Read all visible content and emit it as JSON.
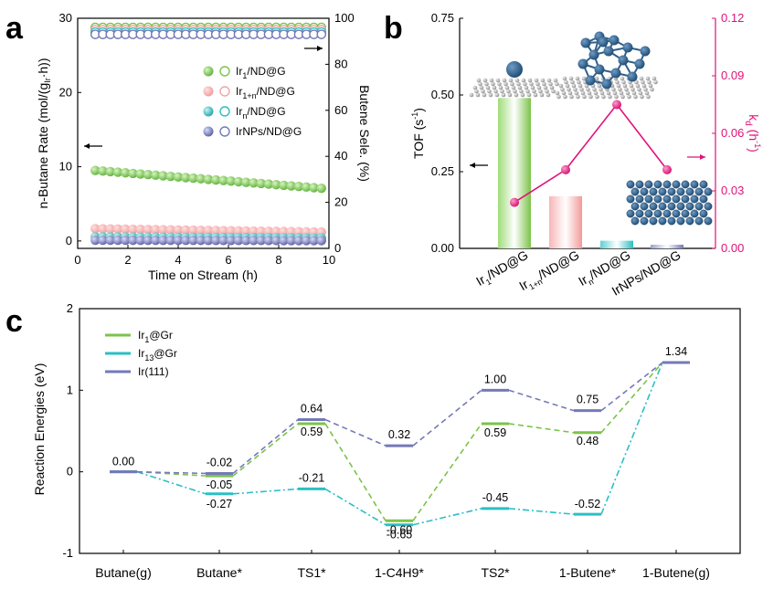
{
  "colors": {
    "green": "#7cc34a",
    "pink": "#f4a3a3",
    "teal": "#2bbfc4",
    "purple": "#7479b8",
    "magenta": "#e0127a",
    "black": "#000000"
  },
  "chart_data": [
    {
      "panel": "a",
      "type": "scatter",
      "xlabel": "Time on Stream (h)",
      "ylabel_left": "n-Butane Rate (mol/(g_Ir·h))",
      "ylabel_right": "Butene Sele. (%)",
      "xlim": [
        0,
        10
      ],
      "ylim_left": [
        -1,
        30
      ],
      "ylim_right": [
        0,
        100
      ],
      "xticks": [
        "0",
        "2",
        "4",
        "6",
        "8",
        "10"
      ],
      "yticks_left": [
        "0",
        "10",
        "20",
        "30"
      ],
      "yticks_right": [
        "0",
        "20",
        "40",
        "60",
        "80",
        "100"
      ],
      "x": [
        0.7,
        1.0,
        1.3,
        1.6,
        1.9,
        2.2,
        2.5,
        2.8,
        3.1,
        3.4,
        3.7,
        4.0,
        4.3,
        4.6,
        4.9,
        5.2,
        5.5,
        5.8,
        6.1,
        6.4,
        6.7,
        7.0,
        7.3,
        7.6,
        7.9,
        8.2,
        8.5,
        8.8,
        9.1,
        9.4,
        9.7
      ],
      "rate_series": [
        {
          "name": "Ir1/ND@G",
          "start": 9.5,
          "end": 7.1
        },
        {
          "name": "Ir1+n/ND@G",
          "start": 1.65,
          "end": 1.2
        },
        {
          "name": "Irn/ND@G",
          "start": 0.55,
          "end": 0.4
        },
        {
          "name": "IrNPs/ND@G",
          "start": 0.1,
          "end": 0.05
        }
      ],
      "selectivity_series": [
        {
          "name": "Ir1/ND@G",
          "value": 96
        },
        {
          "name": "Ir1+n/ND@G",
          "value": 95
        },
        {
          "name": "Irn/ND@G",
          "value": 94
        },
        {
          "name": "IrNPs/ND@G",
          "value": 93
        }
      ],
      "legend": [
        {
          "base": "Ir",
          "sub": "1",
          "rest": "/ND@G"
        },
        {
          "base": "Ir",
          "sub": "1+n",
          "rest": "/ND@G"
        },
        {
          "base": "Ir",
          "sub": "n",
          "rest": "/ND@G"
        },
        {
          "base": "IrNPs",
          "sub": "",
          "rest": "/ND@G"
        }
      ]
    },
    {
      "panel": "b",
      "type": "bar",
      "ylabel_left": "TOF (s⁻¹)",
      "ylabel_right": "kd (h⁻¹)",
      "ylim_left": [
        0,
        0.75
      ],
      "ylim_right": [
        0,
        0.12
      ],
      "yticks_left": [
        "0.00",
        "0.25",
        "0.50",
        "0.75"
      ],
      "yticks_right": [
        "0.00",
        "0.03",
        "0.06",
        "0.09",
        "0.12"
      ],
      "categories": [
        {
          "base": "Ir",
          "sub": "1",
          "rest": "/ND@G"
        },
        {
          "base": "Ir",
          "sub": "1+n",
          "rest": "/ND@G"
        },
        {
          "base": "Ir",
          "sub": "n",
          "rest": "/ND@G"
        },
        {
          "base": "IrNPs",
          "sub": "",
          "rest": "/ND@G"
        }
      ],
      "tof_values": [
        0.49,
        0.17,
        0.025,
        0.012
      ],
      "kd_values": [
        0.024,
        0.041,
        0.075,
        0.041
      ]
    },
    {
      "panel": "c",
      "type": "line",
      "ylabel": "Reaction Energies (eV)",
      "ylim": [
        -1,
        2
      ],
      "yticks": [
        "-1",
        "0",
        "1",
        "2"
      ],
      "categories": [
        "Butane(g)",
        "Butane*",
        "TS1*",
        "1-C4H9*",
        "TS2*",
        "1-Butene*",
        "1-Butene(g)"
      ],
      "series": [
        {
          "name": "Ir1@Gr",
          "values": [
            0.0,
            -0.05,
            0.59,
            -0.6,
            0.59,
            0.48,
            1.34
          ],
          "labels": [
            "",
            "-0.05",
            "0.59",
            "-0.60",
            "0.59",
            "0.48",
            "1.34"
          ]
        },
        {
          "name": "Ir13@Gr",
          "values": [
            0.0,
            -0.27,
            -0.21,
            -0.65,
            -0.45,
            -0.52,
            1.34
          ],
          "labels": [
            "0.00",
            "-0.27",
            "-0.21",
            "-0.65",
            "-0.45",
            "-0.52",
            ""
          ]
        },
        {
          "name": "Ir(111)",
          "values": [
            0.0,
            -0.02,
            0.64,
            0.32,
            1.0,
            0.75,
            1.34
          ],
          "labels": [
            "",
            "-0.02",
            "0.64",
            "0.32",
            "1.00",
            "0.75",
            ""
          ]
        }
      ],
      "legend": [
        {
          "base": "Ir",
          "sub": "1",
          "rest": "@Gr"
        },
        {
          "base": "Ir",
          "sub": "13",
          "rest": "@Gr"
        },
        {
          "base": "Ir(111)",
          "sub": "",
          "rest": ""
        }
      ]
    }
  ],
  "panel_labels": {
    "a": "a",
    "b": "b",
    "c": "c"
  }
}
